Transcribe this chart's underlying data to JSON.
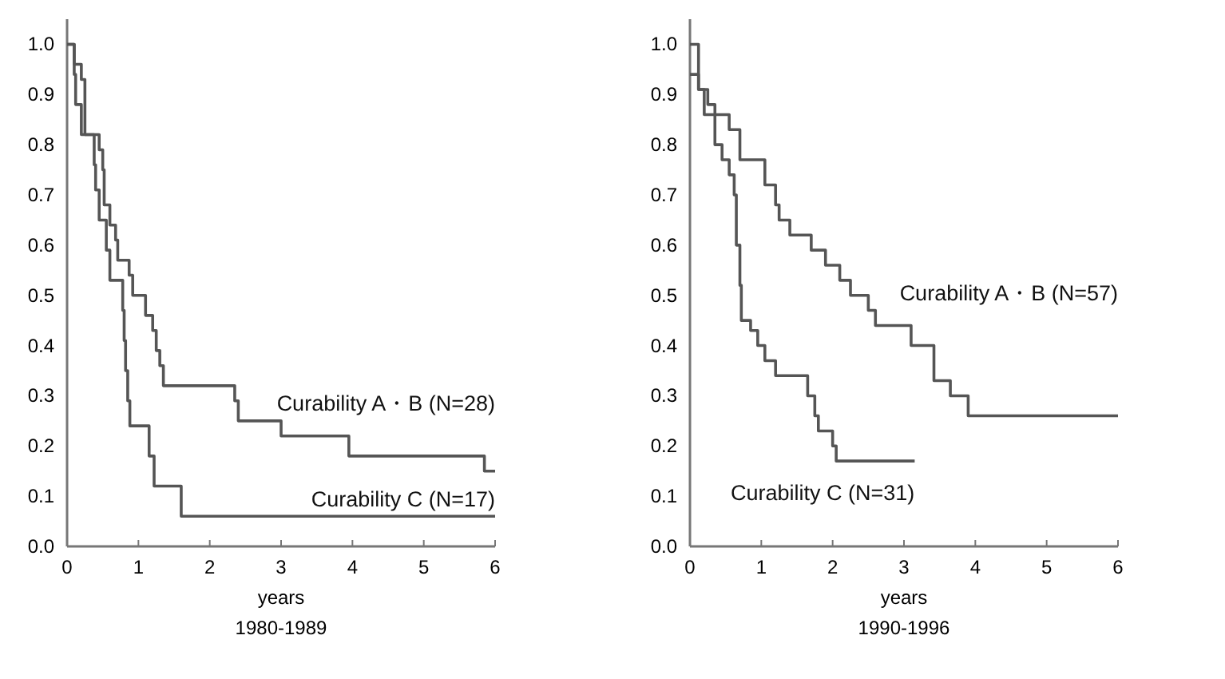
{
  "chart_data": [
    {
      "type": "step",
      "title": "1980-1989",
      "xlabel": "years",
      "xlim": [
        0,
        6
      ],
      "xticks": [
        0,
        1,
        2,
        3,
        4,
        5,
        6
      ],
      "ylim": [
        0,
        1.05
      ],
      "yticks": [
        {
          "value": 0,
          "label": "0.0"
        },
        {
          "value": 0.1,
          "label": "0.1"
        },
        {
          "value": 0.2,
          "label": "0.2"
        },
        {
          "value": 0.3,
          "label": "0.3"
        },
        {
          "value": 0.4,
          "label": "0.4"
        },
        {
          "value": 0.5,
          "label": "0.5"
        },
        {
          "value": 0.6,
          "label": "0.6"
        },
        {
          "value": 0.7,
          "label": "0.7"
        },
        {
          "value": 0.8,
          "label": "0.8"
        },
        {
          "value": 0.9,
          "label": "0.9"
        },
        {
          "value": 1,
          "label": "1.0"
        }
      ],
      "grid": false,
      "line_style": "solid",
      "series": [
        {
          "name": "Curability A・B (N=28)",
          "color": "#555555",
          "x": [
            0,
            0.1,
            0.2,
            0.25,
            0.45,
            0.5,
            0.52,
            0.6,
            0.68,
            0.71,
            0.87,
            0.92,
            1.1,
            1.2,
            1.25,
            1.3,
            1.35,
            2.35,
            2.4,
            3.0,
            3.95,
            5.85,
            6.0
          ],
          "values": [
            1.0,
            0.96,
            0.93,
            0.82,
            0.79,
            0.75,
            0.68,
            0.64,
            0.61,
            0.57,
            0.54,
            0.5,
            0.46,
            0.43,
            0.39,
            0.36,
            0.32,
            0.29,
            0.25,
            0.22,
            0.18,
            0.15,
            0.15
          ]
        },
        {
          "name": "Curability C (N=17)",
          "color": "#555555",
          "x": [
            0,
            0.1,
            0.12,
            0.2,
            0.38,
            0.4,
            0.45,
            0.55,
            0.6,
            0.78,
            0.8,
            0.82,
            0.85,
            0.88,
            1.15,
            1.22,
            1.6,
            6.0
          ],
          "values": [
            1.0,
            0.94,
            0.88,
            0.82,
            0.76,
            0.71,
            0.65,
            0.59,
            0.53,
            0.47,
            0.41,
            0.35,
            0.29,
            0.24,
            0.18,
            0.12,
            0.06,
            0.06
          ]
        }
      ]
    },
    {
      "type": "step",
      "title": "1990-1996",
      "xlabel": "years",
      "xlim": [
        0,
        6
      ],
      "xticks": [
        0,
        1,
        2,
        3,
        4,
        5,
        6
      ],
      "ylim": [
        0,
        1.05
      ],
      "yticks": [
        {
          "value": 0,
          "label": "0.0"
        },
        {
          "value": 0.1,
          "label": "0.1"
        },
        {
          "value": 0.2,
          "label": "0.2"
        },
        {
          "value": 0.3,
          "label": "0.3"
        },
        {
          "value": 0.4,
          "label": "0.4"
        },
        {
          "value": 0.5,
          "label": "0.5"
        },
        {
          "value": 0.6,
          "label": "0.6"
        },
        {
          "value": 0.7,
          "label": "0.7"
        },
        {
          "value": 0.8,
          "label": "0.8"
        },
        {
          "value": 0.9,
          "label": "0.9"
        },
        {
          "value": 1,
          "label": "1.0"
        }
      ],
      "grid": false,
      "line_style": "solid",
      "series": [
        {
          "name": "Curability A・B (N=57)",
          "color": "#555555",
          "x": [
            0,
            0.12,
            0.25,
            0.35,
            0.55,
            0.7,
            1.05,
            1.2,
            1.25,
            1.4,
            1.7,
            1.9,
            2.1,
            2.25,
            2.5,
            2.6,
            3.1,
            3.42,
            3.65,
            3.9,
            6.0
          ],
          "values": [
            1.0,
            0.91,
            0.88,
            0.86,
            0.83,
            0.77,
            0.72,
            0.68,
            0.65,
            0.62,
            0.59,
            0.56,
            0.53,
            0.5,
            0.47,
            0.44,
            0.4,
            0.33,
            0.3,
            0.26,
            0.26
          ]
        },
        {
          "name": "Curability C (N=31)",
          "color": "#555555",
          "x": [
            0,
            0.12,
            0.2,
            0.35,
            0.45,
            0.55,
            0.62,
            0.65,
            0.7,
            0.72,
            0.85,
            0.95,
            1.05,
            1.2,
            1.65,
            1.75,
            1.8,
            2.0,
            2.05,
            3.15
          ],
          "values": [
            0.94,
            0.91,
            0.86,
            0.8,
            0.77,
            0.74,
            0.7,
            0.6,
            0.52,
            0.45,
            0.43,
            0.4,
            0.37,
            0.34,
            0.3,
            0.26,
            0.23,
            0.2,
            0.17,
            0.17
          ]
        }
      ]
    }
  ]
}
